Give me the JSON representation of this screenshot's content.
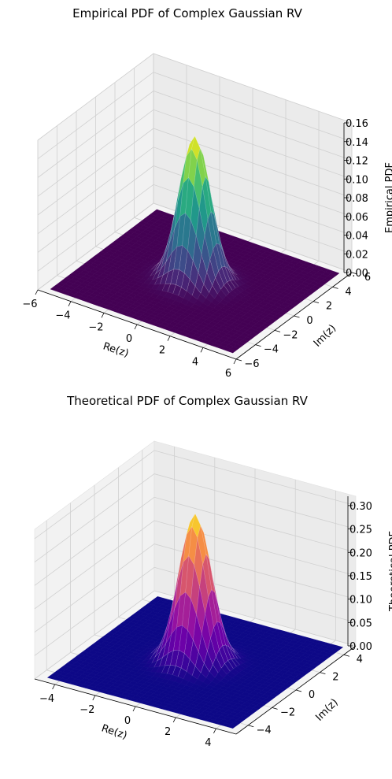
{
  "chart_data": [
    {
      "type": "surface3d",
      "title": "Empirical PDF of Complex Gaussian RV",
      "xlabel": "Re(z)",
      "ylabel": "Im(z)",
      "zlabel": "Empirical PDF",
      "xlim": [
        -6,
        6
      ],
      "ylim": [
        -6,
        6
      ],
      "zlim": [
        0,
        0.16
      ],
      "xticks": [
        "−6",
        "−4",
        "−2",
        "0",
        "2",
        "4",
        "6"
      ],
      "yticks": [
        "−6",
        "−4",
        "−2",
        "0",
        "2",
        "4",
        "6"
      ],
      "zticks": [
        "0.00",
        "0.02",
        "0.04",
        "0.06",
        "0.08",
        "0.10",
        "0.12",
        "0.14",
        "0.16"
      ],
      "peak": 0.155,
      "sigma": 0.85,
      "colormap": "viridis",
      "grid": true
    },
    {
      "type": "surface3d",
      "title": "Theoretical PDF of Complex Gaussian RV",
      "xlabel": "Re(z)",
      "ylabel": "Im(z)",
      "zlabel": "Theoretical PDF",
      "xlim": [
        -5,
        5
      ],
      "ylim": [
        -5,
        5
      ],
      "zlim": [
        0,
        0.32
      ],
      "xticks": [
        "−4",
        "−2",
        "0",
        "2",
        "4"
      ],
      "yticks": [
        "−4",
        "−2",
        "0",
        "2",
        "4"
      ],
      "zticks": [
        "0.00",
        "0.05",
        "0.10",
        "0.15",
        "0.20",
        "0.25",
        "0.30"
      ],
      "peak": 0.318,
      "sigma": 0.71,
      "colormap": "plasma",
      "grid": true
    }
  ]
}
